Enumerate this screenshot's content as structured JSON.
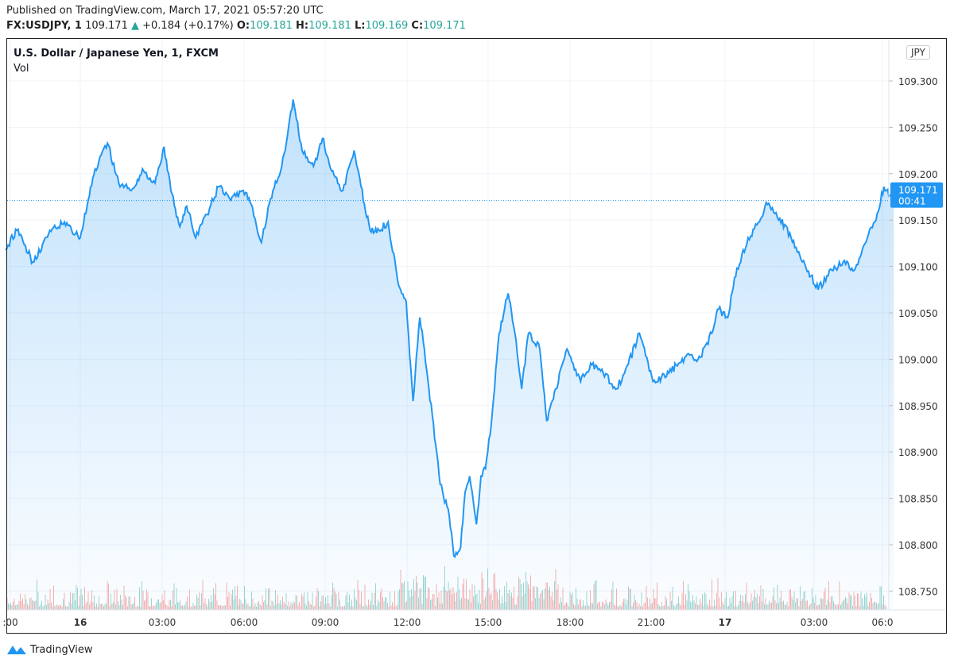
{
  "header": {
    "published": "Published on TradingView.com, March 17, 2021 05:57:20 UTC",
    "symbol": "FX:USDJPY, 1",
    "last": "109.171",
    "change": "+0.184 (+0.17%)",
    "o_label": "O:",
    "o": "109.181",
    "h_label": "H:",
    "h": "109.181",
    "l_label": "L:",
    "l": "109.169",
    "c_label": "C:",
    "c": "109.171"
  },
  "chart_title": "U.S. Dollar / Japanese Yen, 1, FXCM",
  "vol_label": "Vol",
  "currency_button": "JPY",
  "footer": {
    "brand": "TradingView"
  },
  "colors": {
    "line": "#2196f3",
    "up": "#26a69a",
    "down": "#ef5350",
    "label_bg": "#2196f3"
  },
  "chart_data": {
    "type": "area",
    "ylim": [
      108.73,
      109.33
    ],
    "y_ticks": [
      "109.300",
      "109.250",
      "109.200",
      "109.150",
      "109.100",
      "109.050",
      "109.000",
      "108.950",
      "108.900",
      "108.850",
      "108.800",
      "108.750"
    ],
    "x_ticks": [
      ":00",
      "16",
      "03:00",
      "06:00",
      "09:00",
      "12:00",
      "15:00",
      "18:00",
      "21:00",
      "17",
      "03:00",
      "06:0"
    ],
    "last_price": "109.171",
    "countdown": "00:41",
    "grid": true,
    "series": [
      {
        "values": [
          [
            "2021-03-15 21:15",
            109.118
          ],
          [
            "2021-03-15 21:40",
            109.139
          ],
          [
            "2021-03-15 22:15",
            109.105
          ],
          [
            "2021-03-15 22:50",
            109.135
          ],
          [
            "2021-03-15 23:25",
            109.148
          ],
          [
            "2021-03-16 00:00",
            109.131
          ],
          [
            "2021-03-16 00:15",
            109.165
          ],
          [
            "2021-03-16 00:30",
            109.199
          ],
          [
            "2021-03-16 01:00",
            109.233
          ],
          [
            "2021-03-16 01:25",
            109.19
          ],
          [
            "2021-03-16 01:50",
            109.182
          ],
          [
            "2021-03-16 02:20",
            109.203
          ],
          [
            "2021-03-16 02:45",
            109.19
          ],
          [
            "2021-03-16 03:05",
            109.229
          ],
          [
            "2021-03-16 03:20",
            109.182
          ],
          [
            "2021-03-16 03:40",
            109.143
          ],
          [
            "2021-03-16 03:55",
            109.165
          ],
          [
            "2021-03-16 04:15",
            109.131
          ],
          [
            "2021-03-16 04:40",
            109.156
          ],
          [
            "2021-03-16 05:05",
            109.186
          ],
          [
            "2021-03-16 05:30",
            109.173
          ],
          [
            "2021-03-16 06:00",
            109.182
          ],
          [
            "2021-03-16 06:15",
            109.169
          ],
          [
            "2021-03-16 06:40",
            109.126
          ],
          [
            "2021-03-16 07:00",
            109.173
          ],
          [
            "2021-03-16 07:25",
            109.208
          ],
          [
            "2021-03-16 07:35",
            109.233
          ],
          [
            "2021-03-16 07:50",
            109.28
          ],
          [
            "2021-03-16 08:10",
            109.225
          ],
          [
            "2021-03-16 08:35",
            109.208
          ],
          [
            "2021-03-16 08:55",
            109.238
          ],
          [
            "2021-03-16 09:15",
            109.203
          ],
          [
            "2021-03-16 09:40",
            109.182
          ],
          [
            "2021-03-16 10:05",
            109.225
          ],
          [
            "2021-03-16 10:20",
            109.186
          ],
          [
            "2021-03-16 10:40",
            109.139
          ],
          [
            "2021-03-16 11:00",
            109.139
          ],
          [
            "2021-03-16 11:20",
            109.148
          ],
          [
            "2021-03-16 11:40",
            109.088
          ],
          [
            "2021-03-16 12:00",
            109.062
          ],
          [
            "2021-03-16 12:15",
            108.955
          ],
          [
            "2021-03-16 12:30",
            109.045
          ],
          [
            "2021-03-16 12:40",
            109.011
          ],
          [
            "2021-03-16 12:50",
            108.968
          ],
          [
            "2021-03-16 13:05",
            108.908
          ],
          [
            "2021-03-16 13:15",
            108.865
          ],
          [
            "2021-03-16 13:35",
            108.831
          ],
          [
            "2021-03-16 13:45",
            108.788
          ],
          [
            "2021-03-16 14:00",
            108.797
          ],
          [
            "2021-03-16 14:10",
            108.857
          ],
          [
            "2021-03-16 14:20",
            108.874
          ],
          [
            "2021-03-16 14:35",
            108.822
          ],
          [
            "2021-03-16 14:45",
            108.874
          ],
          [
            "2021-03-16 14:55",
            108.882
          ],
          [
            "2021-03-16 15:10",
            108.942
          ],
          [
            "2021-03-16 15:25",
            109.028
          ],
          [
            "2021-03-16 15:45",
            109.071
          ],
          [
            "2021-03-16 16:00",
            109.028
          ],
          [
            "2021-03-16 16:15",
            108.968
          ],
          [
            "2021-03-16 16:30",
            109.028
          ],
          [
            "2021-03-16 16:55",
            109.011
          ],
          [
            "2021-03-16 17:10",
            108.934
          ],
          [
            "2021-03-16 17:30",
            108.968
          ],
          [
            "2021-03-16 17:55",
            109.011
          ],
          [
            "2021-03-16 18:25",
            108.976
          ],
          [
            "2021-03-16 18:50",
            108.994
          ],
          [
            "2021-03-16 19:15",
            108.985
          ],
          [
            "2021-03-16 19:45",
            108.968
          ],
          [
            "2021-03-16 20:10",
            108.994
          ],
          [
            "2021-03-16 20:35",
            109.028
          ],
          [
            "2021-03-16 21:05",
            108.976
          ],
          [
            "2021-03-16 21:40",
            108.985
          ],
          [
            "2021-03-16 22:15",
            109.002
          ],
          [
            "2021-03-16 22:50",
            109.002
          ],
          [
            "2021-03-16 23:15",
            109.028
          ],
          [
            "2021-03-16 23:30",
            109.054
          ],
          [
            "2021-03-16 23:50",
            109.045
          ],
          [
            "2021-03-17 00:05",
            109.088
          ],
          [
            "2021-03-17 00:35",
            109.131
          ],
          [
            "2021-03-17 01:00",
            109.148
          ],
          [
            "2021-03-17 01:15",
            109.169
          ],
          [
            "2021-03-17 01:45",
            109.152
          ],
          [
            "2021-03-17 02:10",
            109.131
          ],
          [
            "2021-03-17 02:35",
            109.105
          ],
          [
            "2021-03-17 03:10",
            109.075
          ],
          [
            "2021-03-17 03:40",
            109.096
          ],
          [
            "2021-03-17 04:05",
            109.105
          ],
          [
            "2021-03-17 04:30",
            109.096
          ],
          [
            "2021-03-17 04:50",
            109.122
          ],
          [
            "2021-03-17 05:15",
            109.148
          ],
          [
            "2021-03-17 05:35",
            109.186
          ],
          [
            "2021-03-17 05:57",
            109.171
          ]
        ]
      }
    ]
  }
}
